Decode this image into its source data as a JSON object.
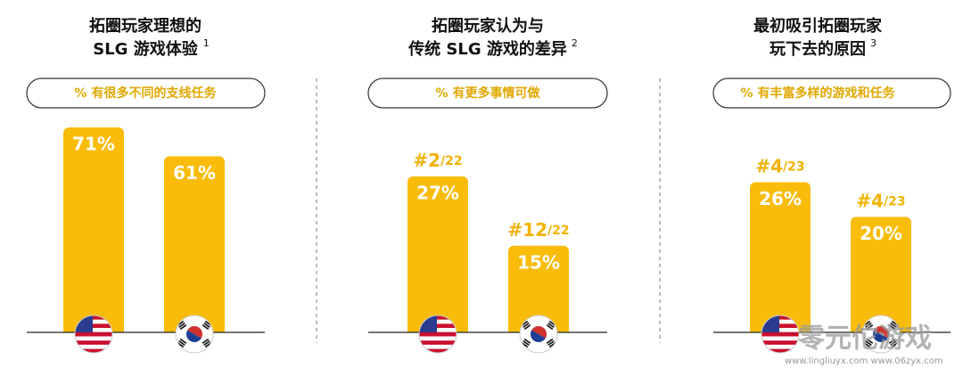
{
  "chart_data": [
    {
      "type": "bar",
      "title_lines": [
        "拓圈玩家理想的",
        "SLG 游戏体验"
      ],
      "title_note": "1",
      "subtitle": "% 有很多不同的支线任务",
      "categories": [
        null,
        null
      ],
      "values": [
        71,
        61
      ],
      "value_labels": [
        "71%",
        "61%"
      ],
      "color": "#F9BC0B",
      "ylim": [
        0,
        100
      ]
    },
    {
      "type": "bar",
      "title_lines": [
        "拓圈玩家认为与",
        "传统 SLG 游戏的差异"
      ],
      "title_note": "2",
      "subtitle": "% 有更多事情可做",
      "categories": [
        null,
        null
      ],
      "values": [
        27,
        15
      ],
      "value_labels": [
        "27%",
        "15%"
      ],
      "rank_labels": [
        {
          "rank": "#2",
          "of": "/22"
        },
        {
          "rank": "#12",
          "of": "/22"
        }
      ],
      "color": "#F9BC0B",
      "ylim": [
        0,
        50
      ]
    },
    {
      "type": "bar",
      "title_lines": [
        "最初吸引拓圈玩家",
        "玩下去的原因"
      ],
      "title_note": "3",
      "subtitle": "% 有丰富多样的游戏和任务",
      "categories": [
        null,
        null
      ],
      "values": [
        26,
        20
      ],
      "value_labels": [
        "26%",
        "20%"
      ],
      "rank_labels": [
        {
          "rank": "#4",
          "of": "/23"
        },
        {
          "rank": "#4",
          "of": "/23"
        }
      ],
      "color": "#F9BC0B",
      "ylim": [
        0,
        50
      ]
    }
  ],
  "watermark": {
    "name": "零元佗游戏",
    "urls": "www.lingliuyx.com  www.06zyx.com"
  }
}
